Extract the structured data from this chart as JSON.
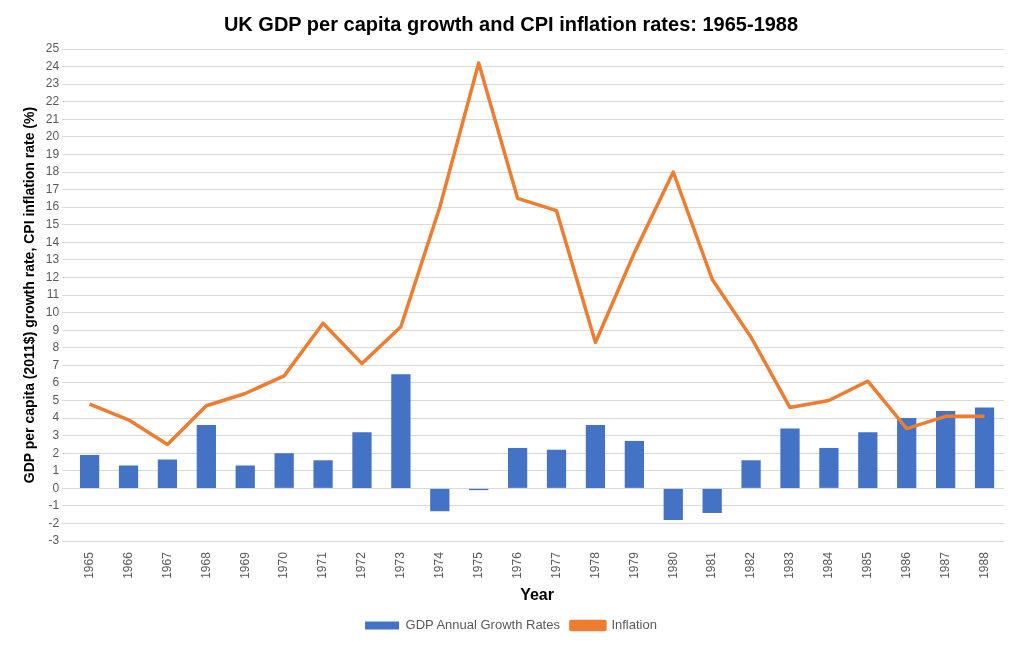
{
  "chart_data": {
    "type": "bar",
    "title": "UK GDP per capita growth and CPI inflation rates: 1965-1988",
    "xlabel": "Year",
    "ylabel": "GDP per capita (2011$) growth rate, CPI inflation rate (%)",
    "categories": [
      "1965",
      "1966",
      "1967",
      "1968",
      "1969",
      "1970",
      "1971",
      "1972",
      "1973",
      "1974",
      "1975",
      "1976",
      "1977",
      "1978",
      "1979",
      "1980",
      "1981",
      "1982",
      "1983",
      "1984",
      "1985",
      "1986",
      "1987",
      "1988"
    ],
    "series": [
      {
        "name": "GDP Annual Growth Rates",
        "color": "#4472c4",
        "values": [
          1.9,
          1.3,
          1.65,
          3.6,
          1.3,
          2.0,
          1.6,
          3.2,
          6.5,
          -1.3,
          -0.1,
          2.3,
          2.2,
          3.6,
          2.7,
          -1.8,
          -1.4,
          1.6,
          3.4,
          2.3,
          3.2,
          4.0,
          4.4,
          4.6
        ]
      },
      {
        "name": "Inflation",
        "type": "line",
        "color": "#ed7d31",
        "values": [
          4.8,
          3.9,
          2.5,
          4.7,
          5.4,
          6.4,
          9.4,
          7.1,
          9.2,
          16.0,
          24.2,
          16.5,
          15.8,
          8.3,
          13.4,
          18.0,
          11.9,
          8.6,
          4.6,
          5.0,
          6.1,
          3.4,
          4.1,
          4.1
        ]
      }
    ],
    "ylim": [
      -3,
      25
    ],
    "yticks": [
      -3,
      -2,
      -1,
      0,
      1,
      2,
      3,
      4,
      5,
      6,
      7,
      8,
      9,
      10,
      11,
      12,
      13,
      14,
      15,
      16,
      17,
      18,
      19,
      20,
      21,
      22,
      23,
      24,
      25
    ],
    "grid": "y",
    "legend": "bottom",
    "marker": "none",
    "line_style": "solid"
  }
}
